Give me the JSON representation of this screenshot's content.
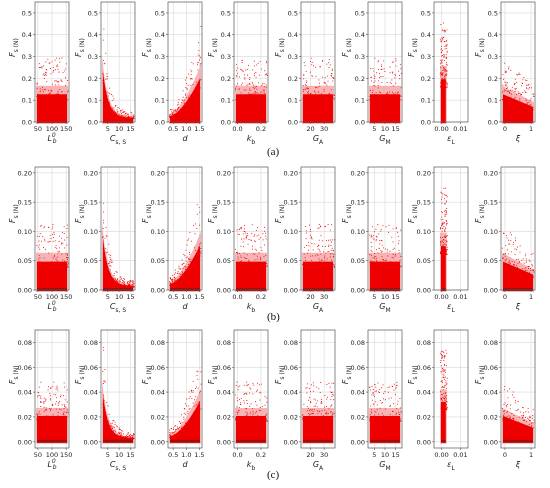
{
  "figure": {
    "rows": [
      {
        "label": "(a)",
        "ylabel": "F_s (N)",
        "ylim": [
          0,
          0.55
        ],
        "yticks": [
          "0.0",
          "0.1",
          "0.2",
          "0.3",
          "0.4",
          "0.5"
        ],
        "ytick_values": [
          0,
          0.1,
          0.2,
          0.3,
          0.4,
          0.5
        ]
      },
      {
        "label": "(b)",
        "ylabel": "F_s (N)",
        "ylim": [
          0,
          0.21
        ],
        "yticks": [
          "0.00",
          "0.05",
          "0.10",
          "0.15",
          "0.20"
        ],
        "ytick_values": [
          0,
          0.05,
          0.1,
          0.15,
          0.2
        ]
      },
      {
        "label": "(c)",
        "ylabel": "F_s (N)",
        "ylim": [
          -0.005,
          0.09
        ],
        "yticks": [
          "0.00",
          "0.02",
          "0.04",
          "0.06",
          "0.08"
        ],
        "ytick_values": [
          0,
          0.02,
          0.04,
          0.06,
          0.08
        ]
      }
    ],
    "columns": [
      {
        "xlabel": "L_b^0",
        "xlim": [
          40,
          160
        ],
        "xticks": [
          "50",
          "100",
          "150"
        ],
        "xtick_values": [
          50,
          100,
          150
        ],
        "trend": "flat"
      },
      {
        "xlabel": "C_s,S",
        "xlim": [
          2,
          17
        ],
        "xticks": [
          "5",
          "10",
          "15"
        ],
        "xtick_values": [
          5,
          10,
          15
        ],
        "trend": "decay"
      },
      {
        "xlabel": "d",
        "xlim": [
          0.3,
          1.6
        ],
        "xticks": [
          "0.5",
          "1.0",
          "1.5"
        ],
        "xtick_values": [
          0.5,
          1.0,
          1.5
        ],
        "trend": "rise"
      },
      {
        "xlabel": "k_b",
        "xlim": [
          -0.03,
          0.26
        ],
        "xticks": [
          "0.0",
          "0.2"
        ],
        "xtick_values": [
          0.0,
          0.2
        ],
        "trend": "flat"
      },
      {
        "xlabel": "G_A",
        "xlim": [
          13,
          38
        ],
        "xticks": [
          "20",
          "30"
        ],
        "xtick_values": [
          20,
          30
        ],
        "trend": "flat"
      },
      {
        "xlabel": "G_M",
        "xlim": [
          2,
          18
        ],
        "xticks": [
          "5",
          "10",
          "15"
        ],
        "xtick_values": [
          5,
          10,
          15
        ],
        "trend": "flat"
      },
      {
        "xlabel": "ε_L",
        "xlim": [
          -0.004,
          0.014
        ],
        "xticks": [
          "0.00",
          "0.01"
        ],
        "xtick_values": [
          0.0,
          0.01
        ],
        "trend": "narrow"
      },
      {
        "xlabel": "ξ",
        "xlim": [
          -0.15,
          1.15
        ],
        "xticks": [
          "0",
          "1"
        ],
        "xtick_values": [
          0,
          1
        ],
        "trend": "flat-decay"
      }
    ],
    "colors": {
      "points": "#ee0000",
      "dense": "#8b1010",
      "halo": "#f7a7a7",
      "grid": "#d8d8d8",
      "frame": "#555555"
    }
  }
}
